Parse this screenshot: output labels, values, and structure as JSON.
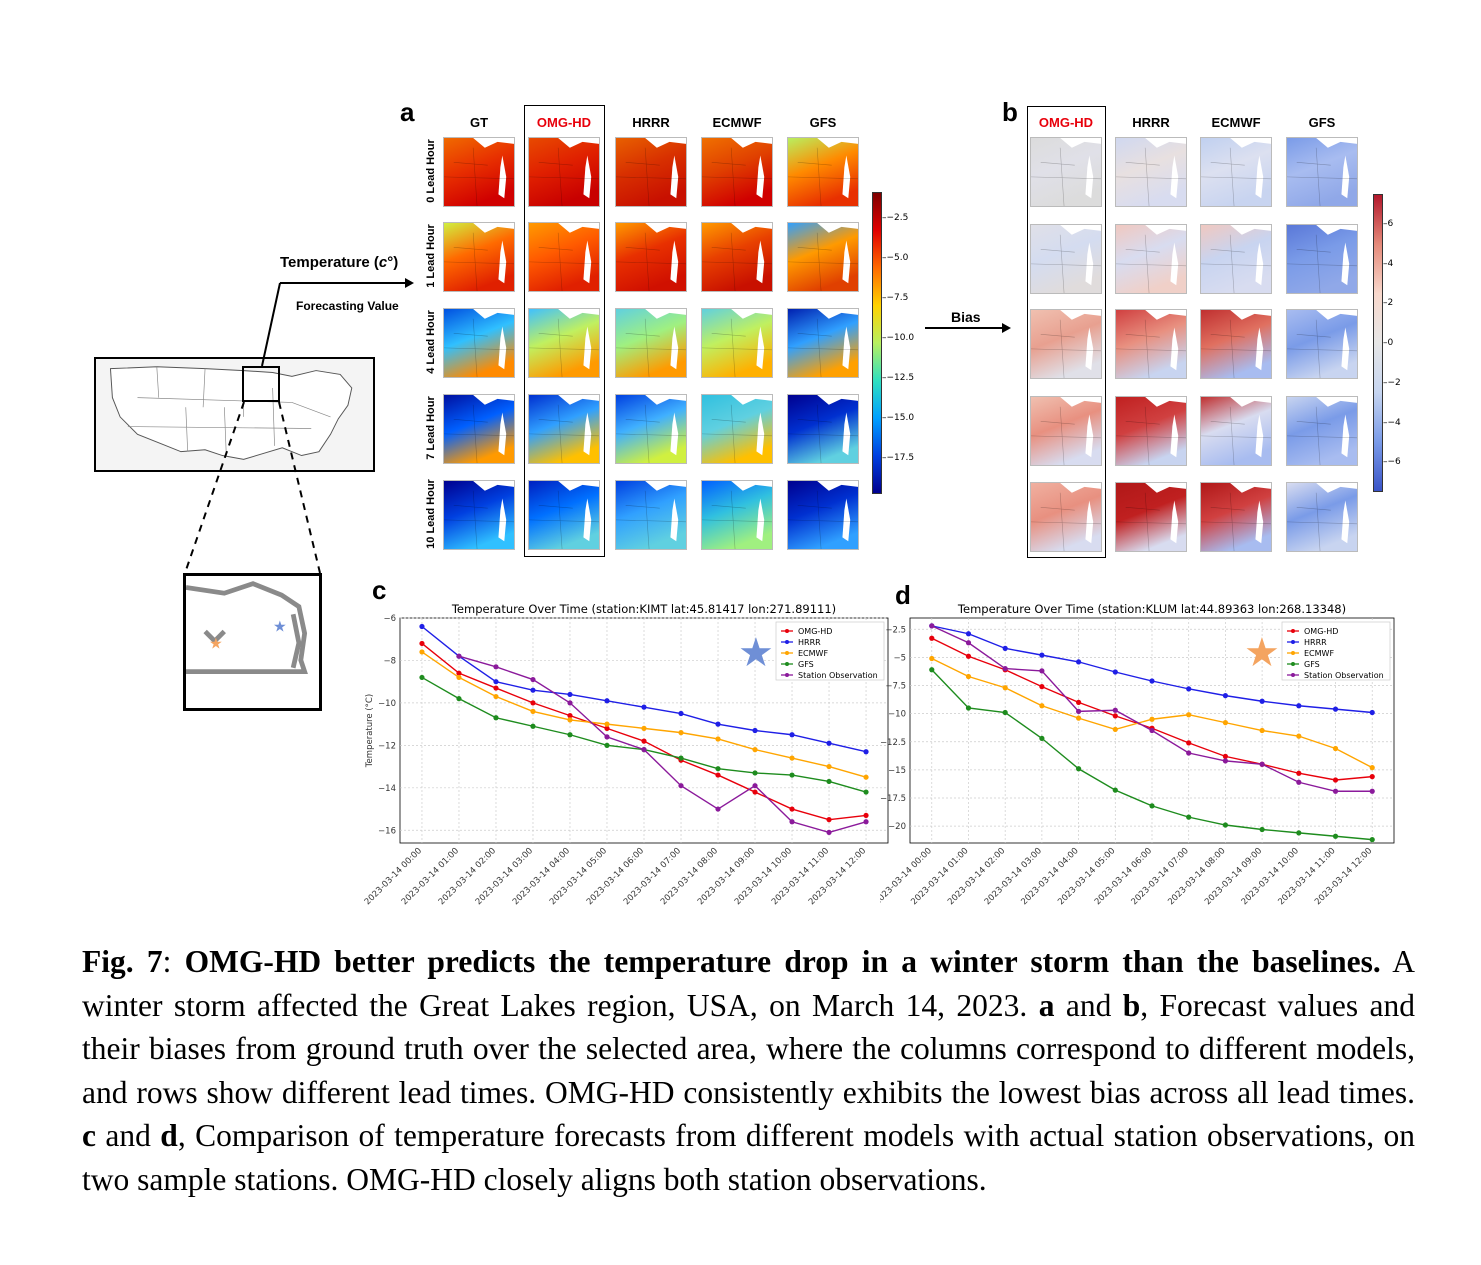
{
  "panel_a": {
    "letter": "a",
    "columns": [
      "GT",
      "OMG-HD",
      "HRRR",
      "ECMWF",
      "GFS"
    ],
    "rows": [
      "0 Lead Hour",
      "1 Lead Hour",
      "4 Lead Hour",
      "7 Lead Hour",
      "10 Lead Hour"
    ],
    "colorbar_ticks": [
      "-2.5",
      "-5.0",
      "-7.5",
      "-10.0",
      "-12.5",
      "-15.0",
      "-17.5"
    ]
  },
  "panel_b": {
    "letter": "b",
    "columns": [
      "OMG-HD",
      "HRRR",
      "ECMWF",
      "GFS"
    ],
    "colorbar_ticks": [
      "6",
      "4",
      "2",
      "0",
      "-2",
      "-4",
      "-6"
    ]
  },
  "labels": {
    "temperature": "Temperature (c°)",
    "forecasting_value": "Forecasting Value",
    "bias": "Bias"
  },
  "colors": {
    "highlight": "#e8000b",
    "omg": "#e8000b",
    "hrrr": "#1f1fe6",
    "ecmwf": "#ffa500",
    "gfs": "#1e8c1e",
    "obs": "#8b1a9b"
  },
  "chart_data": [
    {
      "letter": "c",
      "type": "line",
      "title": "Temperature Over Time (station:KIMT lat:45.81417 lon:271.89111)",
      "ylabel": "Temperature (°C)",
      "ylim": [
        -16.6,
        -6
      ],
      "yticks": [
        -6,
        -8,
        -10,
        -12,
        -14,
        -16
      ],
      "x": [
        "2023-03-14 00:00",
        "2023-03-14 01:00",
        "2023-03-14 02:00",
        "2023-03-14 03:00",
        "2023-03-14 04:00",
        "2023-03-14 05:00",
        "2023-03-14 06:00",
        "2023-03-14 07:00",
        "2023-03-14 08:00",
        "2023-03-14 09:00",
        "2023-03-14 10:00",
        "2023-03-14 11:00",
        "2023-03-14 12:00"
      ],
      "series": [
        {
          "name": "OMG-HD",
          "color": "#e8000b",
          "values": [
            -7.2,
            -8.6,
            -9.3,
            -10.0,
            -10.6,
            -11.2,
            -11.8,
            -12.7,
            -13.4,
            -14.2,
            -15.0,
            -15.5,
            -15.3
          ]
        },
        {
          "name": "HRRR",
          "color": "#1f1fe6",
          "values": [
            -6.4,
            -7.8,
            -9.0,
            -9.4,
            -9.6,
            -9.9,
            -10.2,
            -10.5,
            -11.0,
            -11.3,
            -11.5,
            -11.9,
            -12.3
          ]
        },
        {
          "name": "ECMWF",
          "color": "#ffa500",
          "values": [
            -7.6,
            -8.8,
            -9.7,
            -10.4,
            -10.8,
            -11.0,
            -11.2,
            -11.4,
            -11.7,
            -12.2,
            -12.6,
            -13.0,
            -13.5
          ]
        },
        {
          "name": "GFS",
          "color": "#1e8c1e",
          "values": [
            -8.8,
            -9.8,
            -10.7,
            -11.1,
            -11.5,
            -12.0,
            -12.2,
            -12.6,
            -13.1,
            -13.3,
            -13.4,
            -13.7,
            -14.2
          ]
        },
        {
          "name": "Station Observation",
          "color": "#8b1a9b",
          "values": [
            null,
            -7.8,
            -8.3,
            -8.9,
            -10.0,
            -11.6,
            -12.2,
            -13.9,
            -15.0,
            -13.9,
            -15.6,
            -16.1,
            -15.6
          ]
        }
      ],
      "marker": "star",
      "marker_color": "#6f8fd6"
    },
    {
      "letter": "d",
      "type": "line",
      "title": "Temperature Over Time (station:KLUM lat:44.89363 lon:268.13348)",
      "ylabel": "",
      "ylim": [
        -21.5,
        -1.5
      ],
      "yticks": [
        -2.5,
        -5.0,
        -7.5,
        -10.0,
        -12.5,
        -15.0,
        -17.5,
        -20.0
      ],
      "x": [
        "2023-03-14 00:00",
        "2023-03-14 01:00",
        "2023-03-14 02:00",
        "2023-03-14 03:00",
        "2023-03-14 04:00",
        "2023-03-14 05:00",
        "2023-03-14 06:00",
        "2023-03-14 07:00",
        "2023-03-14 08:00",
        "2023-03-14 09:00",
        "2023-03-14 10:00",
        "2023-03-14 11:00",
        "2023-03-14 12:00"
      ],
      "series": [
        {
          "name": "OMG-HD",
          "color": "#e8000b",
          "values": [
            -3.3,
            -4.9,
            -6.1,
            -7.6,
            -9.0,
            -10.2,
            -11.3,
            -12.6,
            -13.8,
            -14.5,
            -15.3,
            -15.9,
            -15.6
          ]
        },
        {
          "name": "HRRR",
          "color": "#1f1fe6",
          "values": [
            -2.2,
            -2.9,
            -4.2,
            -4.8,
            -5.4,
            -6.3,
            -7.1,
            -7.8,
            -8.4,
            -8.9,
            -9.3,
            -9.6,
            -9.9
          ]
        },
        {
          "name": "ECMWF",
          "color": "#ffa500",
          "values": [
            -5.1,
            -6.7,
            -7.7,
            -9.3,
            -10.4,
            -11.4,
            -10.5,
            -10.1,
            -10.8,
            -11.5,
            -12.0,
            -13.1,
            -14.8
          ]
        },
        {
          "name": "GFS",
          "color": "#1e8c1e",
          "values": [
            -6.1,
            -9.5,
            -9.9,
            -12.2,
            -14.9,
            -16.8,
            -18.2,
            -19.2,
            -19.9,
            -20.3,
            -20.6,
            -20.9,
            -21.2
          ]
        },
        {
          "name": "Station Observation",
          "color": "#8b1a9b",
          "values": [
            -2.2,
            -3.7,
            -6.0,
            -6.2,
            -9.8,
            -9.7,
            -11.5,
            -13.5,
            -14.2,
            -14.5,
            -16.1,
            -16.9,
            -16.9
          ]
        }
      ],
      "marker": "star",
      "marker_color": "#f4a460"
    }
  ],
  "caption": {
    "fig_label": "Fig. 7",
    "bold_title": "OMG-HD better predicts the temperature drop in a winter storm than the baselines.",
    "text1": " A winter storm affected the Great Lakes region, USA, on March 14, 2023. ",
    "a": "a",
    "and1": " and ",
    "b": "b",
    "text2": ", Forecast values and their biases from ground truth over the selected area, where the columns correspond to different models, and rows show different lead times. OMG-HD consistently exhibits the lowest bias across all lead times. ",
    "c": "c",
    "and2": " and ",
    "d": "d",
    "text3": ", Comparison of temperature forecasts from different models with actual station observations, on two sample stations. OMG-HD closely aligns both station observations."
  }
}
